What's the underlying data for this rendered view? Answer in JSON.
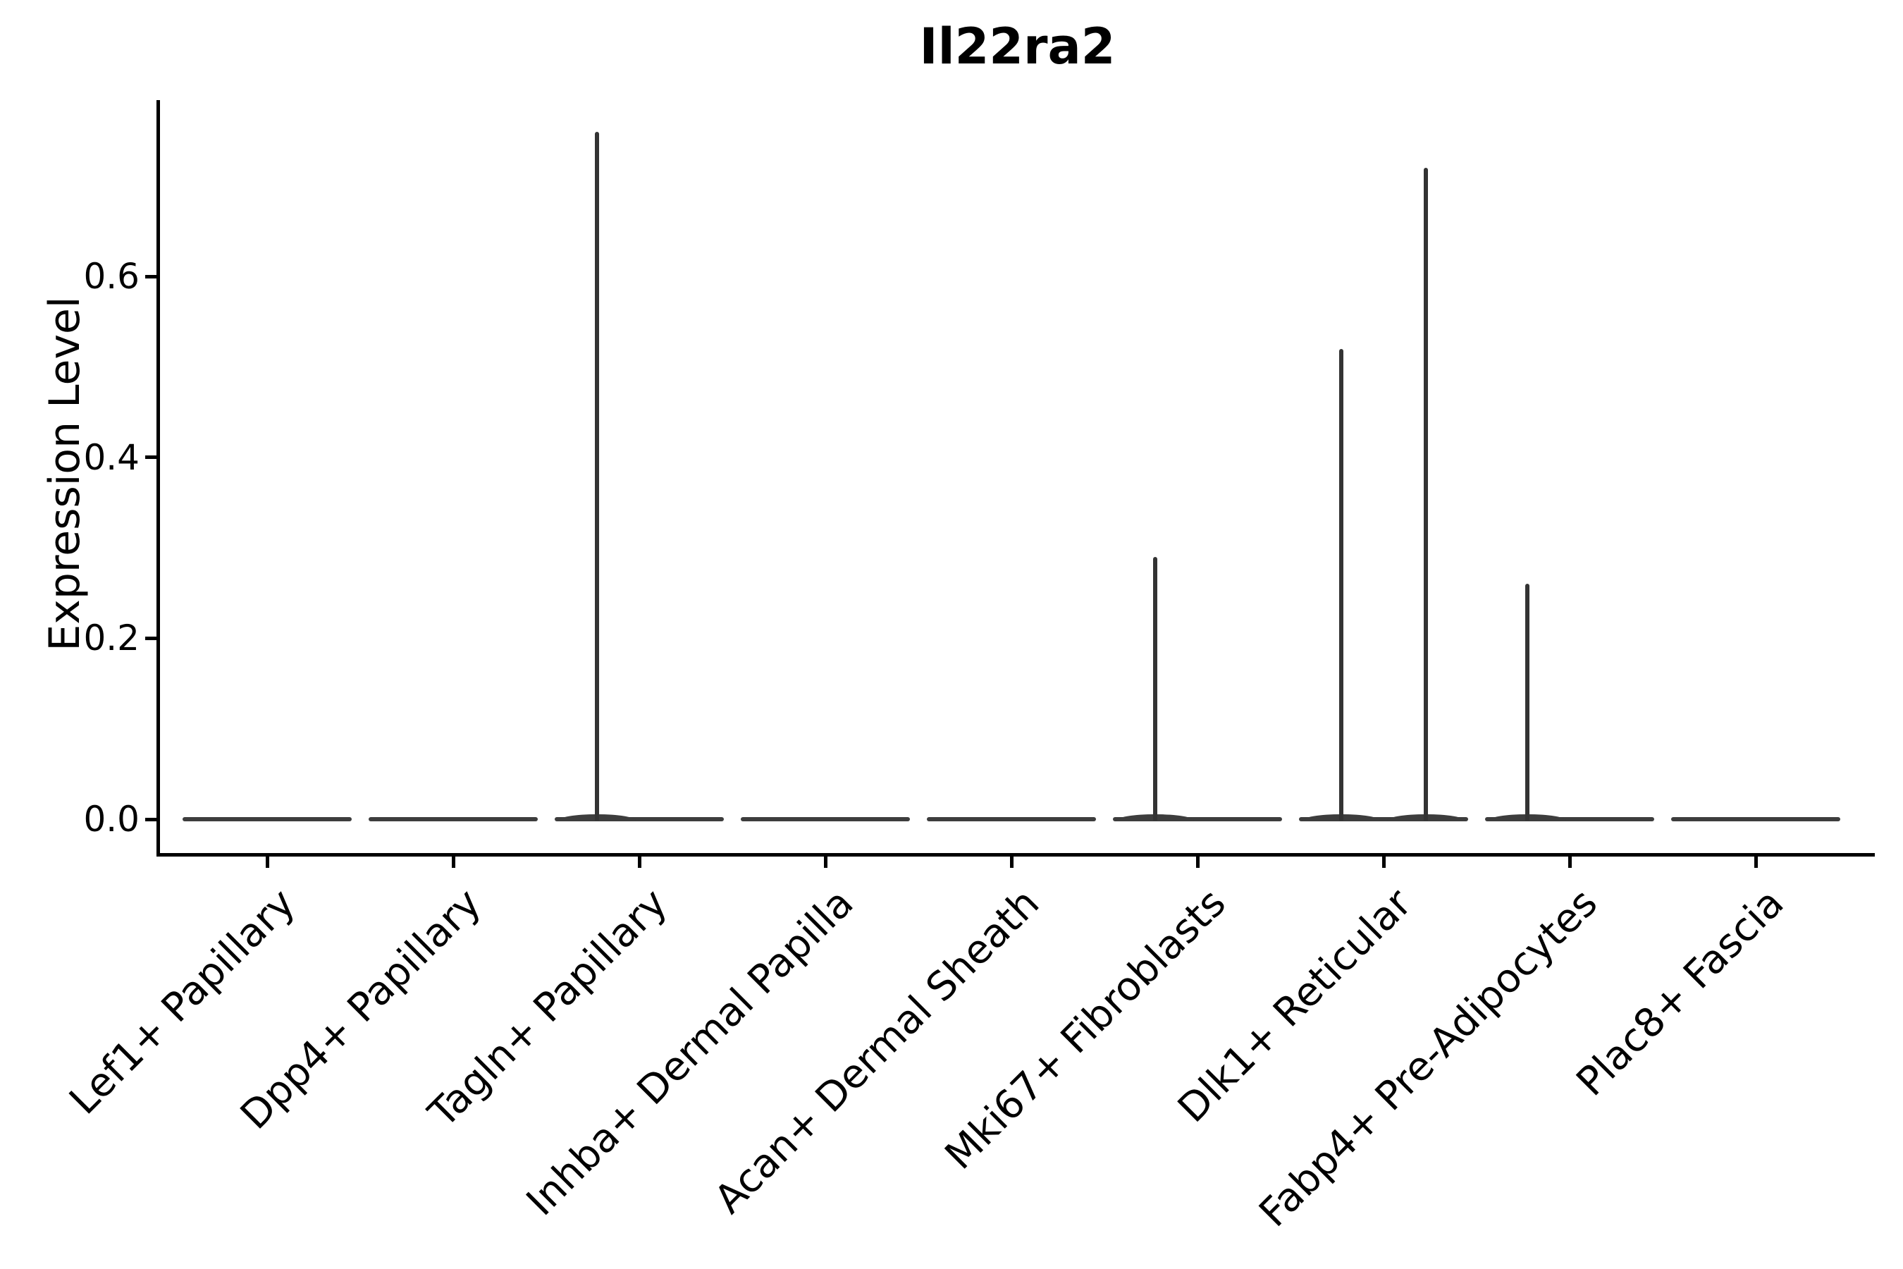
{
  "chart_data": {
    "type": "violin",
    "title": "Il22ra2",
    "ylabel": "Expression Level",
    "xlabel": "",
    "categories": [
      "Lef1+ Papillary",
      "Dpp4+ Papillary",
      "Tagln+ Papillary",
      "Inhba+ Dermal Papilla",
      "Acan+ Dermal Sheath",
      "Mki67+ Fibroblasts",
      "Dlk1+ Reticular",
      "Fabp4+ Pre-Adipocytes",
      "Plac8+ Fascia"
    ],
    "ytick_labels": [
      "0.0",
      "0.2",
      "0.4",
      "0.6"
    ],
    "ytick_values": [
      0.0,
      0.2,
      0.4,
      0.6
    ],
    "ylim": [
      0.0,
      0.795
    ],
    "grid": false,
    "legend": "none",
    "violins_per_category": 2,
    "series": [
      {
        "name": "violin-left",
        "max_expression": [
          0,
          0,
          0.76,
          0,
          0,
          0.29,
          0.52,
          0.26,
          0
        ]
      },
      {
        "name": "violin-right",
        "max_expression": [
          0,
          0,
          0,
          0,
          0,
          0,
          0.72,
          0,
          0
        ]
      }
    ],
    "baseline_expression": 0,
    "colors": {
      "violin": "#3d3d3d",
      "axis": "#000000",
      "background": "#ffffff"
    }
  }
}
